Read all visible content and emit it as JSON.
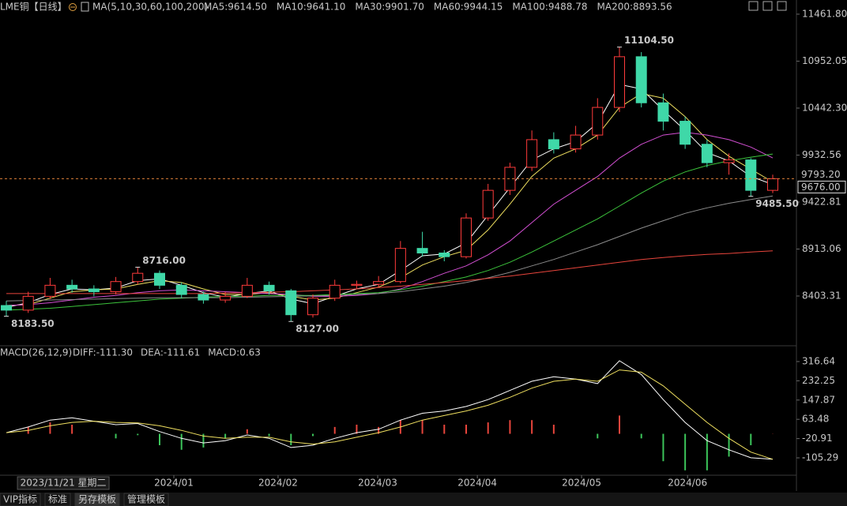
{
  "chart_data": {
    "type": "candlestick",
    "title": "LME铜【日线】",
    "ma_label": "MA(5,10,30,60,100,200)",
    "candles": [
      [
        8300,
        8350,
        8183.5,
        8250
      ],
      [
        8250,
        8450,
        8220,
        8400
      ],
      [
        8400,
        8600,
        8370,
        8520
      ],
      [
        8520,
        8580,
        8440,
        8480
      ],
      [
        8480,
        8520,
        8400,
        8450
      ],
      [
        8450,
        8610,
        8420,
        8560
      ],
      [
        8560,
        8716,
        8530,
        8650
      ],
      [
        8650,
        8680,
        8480,
        8520
      ],
      [
        8520,
        8550,
        8380,
        8420
      ],
      [
        8420,
        8450,
        8320,
        8360
      ],
      [
        8360,
        8450,
        8330,
        8400
      ],
      [
        8400,
        8600,
        8380,
        8520
      ],
      [
        8520,
        8560,
        8420,
        8460
      ],
      [
        8460,
        8480,
        8127,
        8200
      ],
      [
        8200,
        8420,
        8170,
        8380
      ],
      [
        8380,
        8580,
        8350,
        8520
      ],
      [
        8520,
        8570,
        8480,
        8530
      ],
      [
        8530,
        8620,
        8500,
        8560
      ],
      [
        8560,
        9000,
        8540,
        8920
      ],
      [
        8920,
        9100,
        8830,
        8870
      ],
      [
        8870,
        8900,
        8780,
        8830
      ],
      [
        8830,
        9300,
        8810,
        9250
      ],
      [
        9250,
        9620,
        9220,
        9550
      ],
      [
        9550,
        9850,
        9500,
        9800
      ],
      [
        9800,
        10200,
        9760,
        10100
      ],
      [
        10100,
        10180,
        9950,
        10000
      ],
      [
        10000,
        10250,
        9960,
        10150
      ],
      [
        10150,
        10550,
        10100,
        10450
      ],
      [
        10450,
        11104.5,
        10400,
        11000
      ],
      [
        11000,
        11050,
        10450,
        10500
      ],
      [
        10500,
        10600,
        10200,
        10300
      ],
      [
        10300,
        10350,
        10000,
        10050
      ],
      [
        10050,
        10100,
        9800,
        9850
      ],
      [
        9850,
        9950,
        9720,
        9880
      ],
      [
        9880,
        9900,
        9485.5,
        9550
      ],
      [
        9550,
        9720,
        9520,
        9676
      ]
    ],
    "up_color": "#ff3b3b",
    "down_color": "#3fd8a8",
    "series": [
      {
        "name": "MA5:9614.50",
        "color": "#ffffff",
        "values": [
          8280,
          8330,
          8420,
          8480,
          8470,
          8490,
          8570,
          8590,
          8520,
          8440,
          8390,
          8430,
          8460,
          8370,
          8320,
          8400,
          8480,
          8530,
          8680,
          8840,
          8860,
          8980,
          9280,
          9580,
          9880,
          10000,
          10080,
          10280,
          10700,
          10650,
          10420,
          10200,
          9960,
          9870,
          9700,
          9614.5
        ]
      },
      {
        "name": "MA10:9641.10",
        "color": "#f0e060",
        "values": [
          8300,
          8310,
          8380,
          8450,
          8470,
          8480,
          8530,
          8570,
          8550,
          8480,
          8420,
          8420,
          8440,
          8400,
          8360,
          8380,
          8440,
          8500,
          8600,
          8740,
          8830,
          8900,
          9120,
          9400,
          9700,
          9900,
          10000,
          10150,
          10450,
          10600,
          10550,
          10350,
          10100,
          9920,
          9780,
          9641.1
        ]
      },
      {
        "name": "MA30:9901.70",
        "color": "#d24fd2",
        "values": [
          8300,
          8310,
          8330,
          8360,
          8390,
          8410,
          8440,
          8460,
          8470,
          8460,
          8450,
          8440,
          8430,
          8420,
          8400,
          8400,
          8410,
          8430,
          8480,
          8560,
          8650,
          8730,
          8850,
          9000,
          9200,
          9400,
          9550,
          9700,
          9900,
          10050,
          10150,
          10180,
          10150,
          10100,
          10020,
          9901.7
        ]
      },
      {
        "name": "MA60:9944.15",
        "color": "#3cc43c",
        "values": [
          8250,
          8260,
          8270,
          8290,
          8310,
          8330,
          8350,
          8370,
          8380,
          8390,
          8400,
          8400,
          8410,
          8410,
          8410,
          8420,
          8430,
          8440,
          8470,
          8510,
          8560,
          8610,
          8680,
          8770,
          8880,
          9000,
          9120,
          9240,
          9380,
          9520,
          9650,
          9750,
          9820,
          9870,
          9910,
          9944.15
        ]
      },
      {
        "name": "MA100:9488.78",
        "color": "#8c8c8c",
        "values": [
          8350,
          8355,
          8360,
          8365,
          8370,
          8375,
          8380,
          8385,
          8385,
          8385,
          8385,
          8390,
          8395,
          8400,
          8405,
          8410,
          8420,
          8430,
          8450,
          8480,
          8510,
          8550,
          8600,
          8660,
          8730,
          8800,
          8880,
          8960,
          9050,
          9140,
          9220,
          9300,
          9360,
          9410,
          9450,
          9488.78
        ]
      },
      {
        "name": "MA200:8893.56",
        "color": "#e8453c",
        "values": [
          8430,
          8430,
          8430,
          8430,
          8430,
          8430,
          8430,
          8430,
          8430,
          8430,
          8435,
          8440,
          8445,
          8450,
          8460,
          8470,
          8480,
          8495,
          8510,
          8530,
          8550,
          8570,
          8595,
          8620,
          8650,
          8680,
          8710,
          8740,
          8770,
          8800,
          8820,
          8840,
          8855,
          8865,
          8880,
          8893.56
        ]
      }
    ],
    "ylim": [
      7932,
      11547
    ],
    "yticks": [
      {
        "value": 11461.8,
        "label": "11461.80"
      },
      {
        "value": 10952.05,
        "label": "10952.05"
      },
      {
        "value": 10442.3,
        "label": "10442.30"
      },
      9932.56,
      9422.81,
      8913.06,
      8403.31
    ],
    "price_tags": [
      {
        "value": 9793.2,
        "label": "9793.20"
      },
      {
        "value": 9676,
        "label": "9676.00"
      }
    ],
    "annotations": [
      {
        "value": 11104.5,
        "label": "11104.50",
        "color": "#ff4040"
      },
      {
        "value": 8716,
        "label": "8716.00",
        "color": "#ff4040"
      },
      {
        "value": 8183.5,
        "label": "8183.50",
        "color": "#6fbfb0"
      },
      {
        "value": 8127,
        "label": "8127.00",
        "color": "#3fd86a"
      },
      {
        "value": 9485.5,
        "label": "9485.50",
        "color": "#3fd86a"
      }
    ],
    "xticks": [
      {
        "value": 7.65,
        "label": "2024/01"
      },
      {
        "value": 12.41,
        "label": "2024/02"
      },
      {
        "value": 16.96,
        "label": "2024/03"
      },
      {
        "value": 21.51,
        "label": "2024/04"
      },
      {
        "value": 26.27,
        "label": "2024/05"
      },
      {
        "value": 31.11,
        "label": "2024/06"
      }
    ],
    "cursor_date": {
      "value": 2.6,
      "label": "2023/11/21 星期二"
    },
    "macd": {
      "title": "MACD(26,12,9)",
      "series": [
        {
          "name": "DIFF:-111.30",
          "color": "#ffffff",
          "values": [
            5,
            30,
            60,
            70,
            55,
            40,
            45,
            10,
            -20,
            -40,
            -30,
            -5,
            -20,
            -60,
            -50,
            -20,
            5,
            20,
            60,
            90,
            100,
            120,
            150,
            190,
            230,
            250,
            240,
            220,
            320,
            260,
            150,
            50,
            -30,
            -70,
            -105,
            -111.3
          ]
        },
        {
          "name": "DEA:-111.61",
          "color": "#f0e060",
          "values": [
            5,
            15,
            35,
            50,
            55,
            50,
            48,
            35,
            15,
            -10,
            -20,
            -15,
            -15,
            -35,
            -45,
            -35,
            -15,
            5,
            30,
            60,
            80,
            100,
            125,
            160,
            200,
            230,
            240,
            230,
            280,
            270,
            210,
            130,
            50,
            -20,
            -80,
            -111.61
          ]
        }
      ],
      "bars": {
        "name": "MACD:0.63",
        "color": "#d24fd2",
        "values": [
          0,
          30,
          50,
          40,
          0,
          -20,
          -6,
          -50,
          -70,
          -60,
          -20,
          20,
          -10,
          -50,
          -10,
          30,
          40,
          30,
          60,
          60,
          40,
          40,
          50,
          60,
          60,
          40,
          0,
          -20,
          80,
          -20,
          -120,
          -160,
          -160,
          -100,
          -50,
          0.63
        ]
      },
      "ylim": [
        -174.5,
        361.6
      ],
      "yticks": [
        316.64,
        232.25,
        147.87,
        63.48,
        -20.91,
        -105.29
      ]
    },
    "toolbar": [
      "VIP指标",
      "标准",
      "另存模板",
      "管理模板"
    ]
  }
}
